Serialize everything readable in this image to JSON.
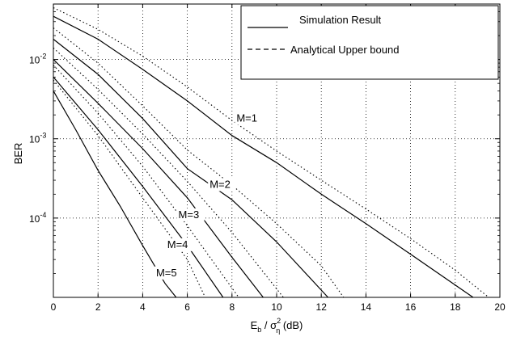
{
  "chart_data": {
    "type": "line",
    "xlabel": {
      "base": "E",
      "base_sub": "b",
      "mid": " / σ",
      "sup": "2",
      "sub": "η",
      "unit": " (dB)"
    },
    "ylabel": "BER",
    "xlim": [
      0,
      20
    ],
    "ylim": [
      1e-05,
      0.05
    ],
    "yscale": "log",
    "xticks": [
      "0",
      "2",
      "4",
      "6",
      "8",
      "10",
      "12",
      "14",
      "16",
      "18",
      "20"
    ],
    "yticks": [
      {
        "value": 0.01,
        "mantissa": "10",
        "exp": "-2"
      },
      {
        "value": 0.001,
        "mantissa": "10",
        "exp": "-3"
      },
      {
        "value": 0.0001,
        "mantissa": "10",
        "exp": "-4"
      }
    ],
    "grid": true,
    "legend_position": "top-right",
    "legend": [
      {
        "label": "Simulation Result",
        "style": "solid"
      },
      {
        "label": "Analytical Upper bound",
        "style": "dashed"
      }
    ],
    "series": [
      {
        "label": "M=1",
        "kind": "simulation",
        "x": [
          0,
          2,
          4,
          6,
          8,
          10,
          12,
          14,
          16,
          18.8
        ],
        "y": [
          0.035,
          0.018,
          0.0075,
          0.003,
          0.0011,
          0.0005,
          0.0002,
          8.5e-05,
          3.5e-05,
          1e-05
        ]
      },
      {
        "label": "M=1",
        "kind": "analytical",
        "x": [
          0,
          2,
          4,
          6,
          8,
          10,
          12,
          14,
          16,
          18,
          19.5
        ],
        "y": [
          0.045,
          0.024,
          0.011,
          0.0045,
          0.0017,
          0.0007,
          0.0003,
          0.00013,
          5.5e-05,
          2.2e-05,
          1e-05
        ]
      },
      {
        "label": "M=2",
        "kind": "simulation",
        "x": [
          0,
          2,
          4,
          6,
          8,
          10,
          12.3
        ],
        "y": [
          0.018,
          0.0065,
          0.0018,
          0.00042,
          0.00017,
          5e-05,
          1e-05
        ]
      },
      {
        "label": "M=2",
        "kind": "analytical",
        "x": [
          0,
          2,
          4,
          6,
          8,
          10,
          12,
          13
        ],
        "y": [
          0.025,
          0.009,
          0.0026,
          0.00072,
          0.00026,
          8.5e-05,
          2.5e-05,
          1e-05
        ]
      },
      {
        "label": "M=3",
        "kind": "simulation",
        "x": [
          0,
          2,
          4,
          6,
          8,
          9.4
        ],
        "y": [
          0.01,
          0.0028,
          0.00075,
          0.00018,
          3.2e-05,
          1e-05
        ]
      },
      {
        "label": "M=3",
        "kind": "analytical",
        "x": [
          0,
          2,
          4,
          6,
          8,
          10.3
        ],
        "y": [
          0.014,
          0.0042,
          0.00115,
          0.00029,
          6.6e-05,
          1e-05
        ]
      },
      {
        "label": "M=4",
        "kind": "simulation",
        "x": [
          0,
          2,
          4,
          6,
          7.6
        ],
        "y": [
          0.006,
          0.0013,
          0.00025,
          4.5e-05,
          1e-05
        ]
      },
      {
        "label": "M=4",
        "kind": "analytical",
        "x": [
          0,
          2,
          4,
          6,
          8.3
        ],
        "y": [
          0.0085,
          0.0021,
          0.00045,
          8e-05,
          1e-05
        ]
      },
      {
        "label": "M=5",
        "kind": "simulation",
        "x": [
          0,
          1,
          2,
          3,
          4,
          5,
          5.5
        ],
        "y": [
          0.004,
          0.0013,
          0.0004,
          0.00014,
          4.5e-05,
          1.5e-05,
          1e-05
        ]
      },
      {
        "label": "M=5",
        "kind": "analytical",
        "x": [
          0,
          2,
          4,
          6,
          6.8
        ],
        "y": [
          0.0055,
          0.0011,
          0.00018,
          3e-05,
          1e-05
        ]
      }
    ],
    "annotations": [
      {
        "text": "M=1",
        "x": 8.2,
        "y": 0.00165
      },
      {
        "text": "M=2",
        "x": 7.0,
        "y": 0.00024
      },
      {
        "text": "M=3",
        "x": 5.6,
        "y": 0.0001
      },
      {
        "text": "M=4",
        "x": 5.1,
        "y": 4.2e-05
      },
      {
        "text": "M=5",
        "x": 4.6,
        "y": 1.85e-05
      }
    ]
  }
}
